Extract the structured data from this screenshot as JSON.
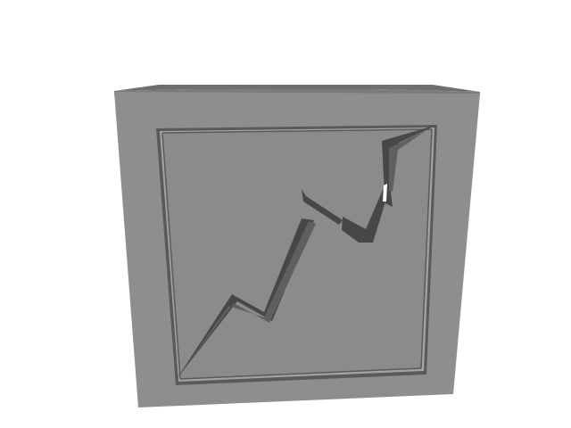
{
  "scene": {
    "object": "stone-block-with-rising-trend-line-icon",
    "colors": {
      "background": "#ffffff",
      "front_face": "#8e8e8e",
      "top_face": "#6f6f6f",
      "side_face": "#7b7b7b",
      "frame_shadow": "#5a5a5a",
      "frame_highlight": "#a3a3a3",
      "inner_face": "#8b8b8b",
      "groove_dark": "#474747",
      "groove_mid": "#5f5f5f",
      "groove_light": "#ffffff"
    }
  }
}
